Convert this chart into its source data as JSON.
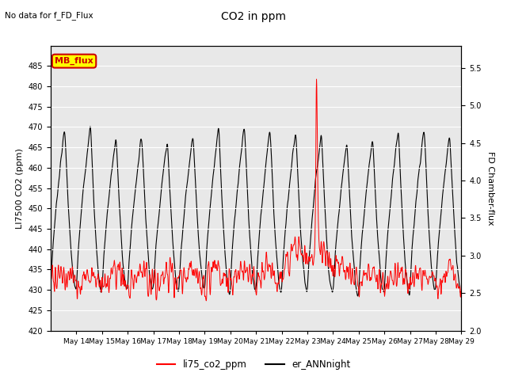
{
  "title": "CO2 in ppm",
  "top_label": "No data for f_FD_Flux",
  "ylabel_left": "LI7500 CO2 (ppm)",
  "ylabel_right": "FD Chamber-flux",
  "ylim_left": [
    420,
    490
  ],
  "ylim_right": [
    2.0,
    5.8
  ],
  "yticks_left": [
    420,
    425,
    430,
    435,
    440,
    445,
    450,
    455,
    460,
    465,
    470,
    475,
    480,
    485
  ],
  "yticks_right": [
    2.0,
    2.5,
    3.0,
    3.5,
    4.0,
    4.5,
    5.0,
    5.5
  ],
  "xticklabels": [
    "May 14",
    "May 15",
    "May 16",
    "May 17",
    "May 18",
    "May 19",
    "May 20",
    "May 21",
    "May 22",
    "May 23",
    "May 24",
    "May 25",
    "May 26",
    "May 27",
    "May 28",
    "May 29"
  ],
  "legend_labels": [
    "li75_co2_ppm",
    "er_ANNnight"
  ],
  "legend_colors": [
    "#ff0000",
    "#000000"
  ],
  "mb_flux_box_color": "#ffff00",
  "mb_flux_text_color": "#cc0000",
  "mb_flux_border_color": "#cc0000",
  "line_co2_color": "#ff0000",
  "line_ann_color": "#000000",
  "bg_color": "#e8e8e8",
  "n_points": 1600,
  "days": 16
}
